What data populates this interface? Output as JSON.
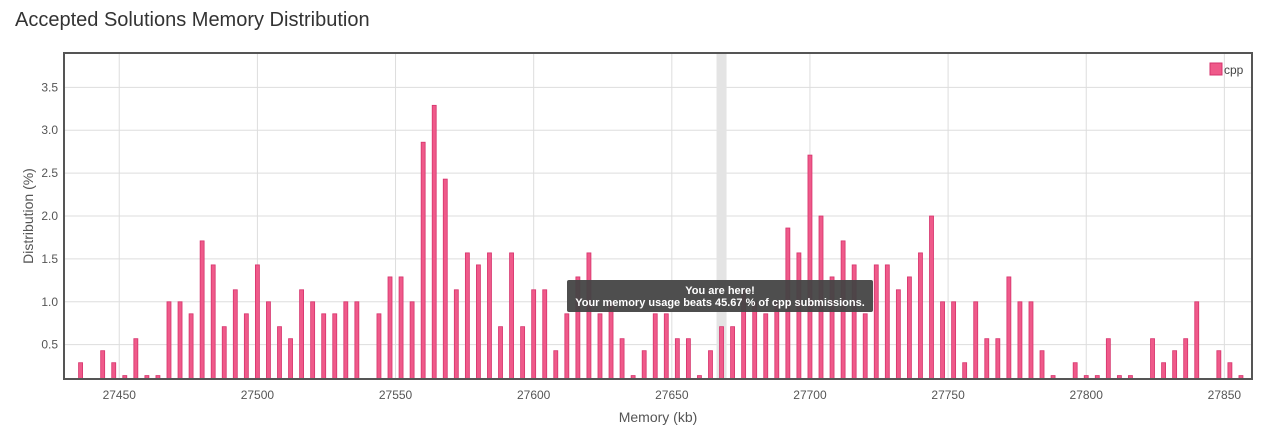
{
  "page": {
    "title": "Accepted Solutions Memory Distribution"
  },
  "chart_data": {
    "type": "bar",
    "xlabel": "Memory (kb)",
    "ylabel": "Distribution (%)",
    "xlim": [
      27430,
      27860
    ],
    "ylim": [
      0.1,
      3.9
    ],
    "x_ticks": [
      27450,
      27500,
      27550,
      27600,
      27650,
      27700,
      27750,
      27800,
      27850
    ],
    "y_ticks": [
      0.5,
      1.0,
      1.5,
      2.0,
      2.5,
      3.0,
      3.5
    ],
    "x_tick_labels": [
      "27450",
      "27500",
      "27550",
      "27600",
      "27650",
      "27700",
      "27750",
      "27800",
      "27850"
    ],
    "y_tick_labels": [
      "0.5",
      "1.0",
      "1.5",
      "2.0",
      "2.5",
      "3.0",
      "3.5"
    ],
    "grid": true,
    "legend_position": "top-right",
    "highlight_x": 27668,
    "highlight_color": "#e4e4e4",
    "bar_color": "#ef5a8a",
    "bar_edge_color": "#d6336c",
    "series": [
      {
        "name": "cpp",
        "x": [
          27436,
          27444,
          27448,
          27452,
          27456,
          27460,
          27464,
          27468,
          27472,
          27476,
          27480,
          27484,
          27488,
          27492,
          27496,
          27500,
          27504,
          27508,
          27512,
          27516,
          27520,
          27524,
          27528,
          27532,
          27536,
          27544,
          27548,
          27552,
          27556,
          27560,
          27564,
          27568,
          27572,
          27576,
          27580,
          27584,
          27588,
          27592,
          27596,
          27600,
          27604,
          27608,
          27612,
          27616,
          27620,
          27624,
          27628,
          27632,
          27636,
          27640,
          27644,
          27648,
          27652,
          27656,
          27660,
          27664,
          27668,
          27672,
          27676,
          27680,
          27684,
          27688,
          27692,
          27696,
          27700,
          27704,
          27708,
          27712,
          27716,
          27720,
          27724,
          27728,
          27732,
          27736,
          27740,
          27744,
          27748,
          27752,
          27756,
          27760,
          27764,
          27768,
          27772,
          27776,
          27780,
          27784,
          27788,
          27792,
          27796,
          27800,
          27804,
          27808,
          27812,
          27816,
          27820,
          27824,
          27828,
          27832,
          27836,
          27840,
          27844,
          27848,
          27852,
          27856
        ],
        "values": [
          0.29,
          0.43,
          0.29,
          0.14,
          0.57,
          0.14,
          0.14,
          1.0,
          1.0,
          0.86,
          1.71,
          1.43,
          0.71,
          1.14,
          0.86,
          1.43,
          1.0,
          0.71,
          0.57,
          1.14,
          1.0,
          0.86,
          0.86,
          1.0,
          1.0,
          0.86,
          1.29,
          1.29,
          1.0,
          2.86,
          3.29,
          2.43,
          1.14,
          1.57,
          1.43,
          1.57,
          0.71,
          1.57,
          0.71,
          1.14,
          1.14,
          0.43,
          0.86,
          1.29,
          1.57,
          0.86,
          1.0,
          0.57,
          0.14,
          0.43,
          0.86,
          0.86,
          0.57,
          0.57,
          0.14,
          0.43,
          0.71,
          0.71,
          1.14,
          1.0,
          0.86,
          1.0,
          1.86,
          1.57,
          2.71,
          2.0,
          1.29,
          1.71,
          1.43,
          0.86,
          1.43,
          1.43,
          1.14,
          1.29,
          1.57,
          2.0,
          1.0,
          1.0,
          0.29,
          1.0,
          0.57,
          0.57,
          1.29,
          1.0,
          1.0,
          0.43,
          0.14,
          0.0,
          0.29,
          0.14,
          0.14,
          0.57,
          0.14,
          0.14,
          0.0,
          0.57,
          0.29,
          0.43,
          0.57,
          1.0,
          0.0,
          0.43,
          0.29,
          0.14
        ]
      }
    ],
    "tooltip": {
      "title": "You are here!",
      "text": "Your memory usage beats 45.67 % of cpp submissions.",
      "background": "#444444"
    }
  }
}
